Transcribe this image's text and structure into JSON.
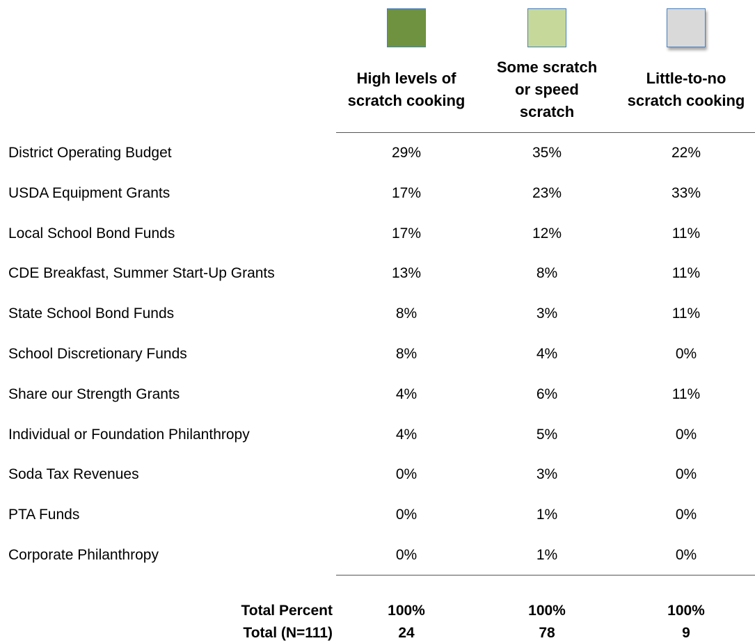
{
  "table": {
    "columns": [
      {
        "color": "#6f9240",
        "header_lines": [
          "High levels of",
          "scratch cooking"
        ]
      },
      {
        "color": "#c6d99b",
        "header_lines": [
          "Some scratch",
          "or speed",
          "scratch"
        ]
      },
      {
        "color": "#d9d9d9",
        "header_lines": [
          "Little-to-no",
          "scratch cooking"
        ]
      }
    ],
    "rows": [
      [
        "District Operating Budget",
        "29%",
        "35%",
        "22%"
      ],
      [
        "USDA Equipment Grants",
        "17%",
        "23%",
        "33%"
      ],
      [
        "Local School Bond Funds",
        "17%",
        "12%",
        "11%"
      ],
      [
        "CDE Breakfast, Summer Start-Up Grants",
        "13%",
        "8%",
        "11%"
      ],
      [
        "State School Bond Funds",
        "8%",
        "3%",
        "11%"
      ],
      [
        "School Discretionary Funds",
        "8%",
        "4%",
        "0%"
      ],
      [
        "Share our Strength Grants",
        "4%",
        "6%",
        "11%"
      ],
      [
        "Individual or Foundation Philanthropy",
        "4%",
        "5%",
        "0%"
      ],
      [
        "Soda Tax Revenues",
        "0%",
        "3%",
        "0%"
      ],
      [
        "PTA Funds",
        "0%",
        "1%",
        "0%"
      ],
      [
        "Corporate Philanthropy",
        "0%",
        "1%",
        "0%"
      ]
    ],
    "totals": [
      [
        "Total Percent",
        "100%",
        "100%",
        "100%"
      ],
      [
        "Total (N=111)",
        "24",
        "78",
        "9"
      ]
    ]
  }
}
